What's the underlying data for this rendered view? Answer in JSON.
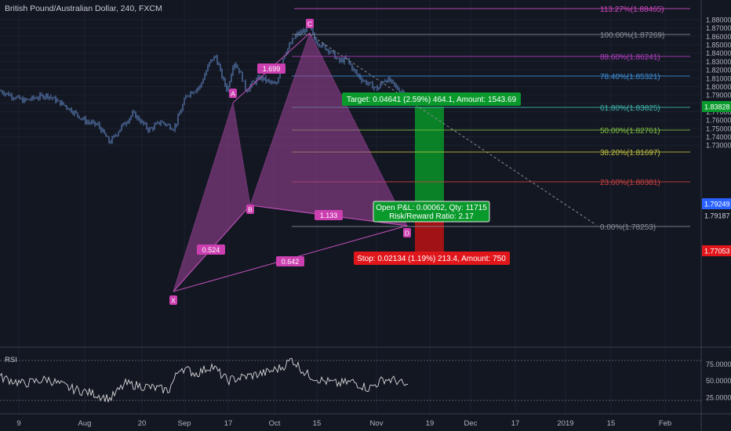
{
  "header": {
    "title": "British Pound/Australian Dollar, 240, FXCM"
  },
  "colors": {
    "background": "#131722",
    "candle": "#5b7fb8",
    "pattern_fill": "#a0459a",
    "pattern_line": "#c050b8",
    "pattern_label": "#cc3fb0",
    "target_zone": "#0a8d28",
    "stop_zone": "#b01212",
    "target_label": "#0a9a2c",
    "stop_label": "#e0161b",
    "rsi_line": "#d8d8d8"
  },
  "price_axis": {
    "ticks": [
      "1.88000",
      "1.87000",
      "1.86000",
      "1.85000",
      "1.84000",
      "1.83000",
      "1.82000",
      "1.81000",
      "1.80000",
      "1.79000",
      "1.78000",
      "1.77000",
      "1.76000",
      "1.75000",
      "1.74000",
      "1.73000"
    ]
  },
  "price_badges": [
    {
      "text": "1.83828",
      "color": "#0a9a2c",
      "text_color": "#ffffff"
    },
    {
      "text": "1.79249",
      "color": "#2962ff",
      "text_color": "#ffffff"
    },
    {
      "text": "1.79187",
      "color": "#131722",
      "text_color": "#d0d3db"
    },
    {
      "text": "1.77053",
      "color": "#e0161b",
      "text_color": "#ffffff"
    }
  ],
  "time_axis": {
    "ticks": [
      "9",
      "Aug",
      "20",
      "Sep",
      "17",
      "Oct",
      "15",
      "Nov",
      "19",
      "Dec",
      "17",
      "2019",
      "15",
      "Feb"
    ]
  },
  "fib_levels": [
    {
      "label": "113.27%(1.88465)",
      "color": "#d048c0"
    },
    {
      "label": "100.00%(1.87269)",
      "color": "#8a8f99"
    },
    {
      "label": "88.60%(1.86241)",
      "color": "#b040c0"
    },
    {
      "label": "78.40%(1.85321)",
      "color": "#3d8fd8"
    },
    {
      "label": "61.80%(1.83825)",
      "color": "#3fb8b0"
    },
    {
      "label": "50.00%(1.82761)",
      "color": "#7fc040"
    },
    {
      "label": "38.20%(1.81697)",
      "color": "#c0c040"
    },
    {
      "label": "23.60%(1.80381)",
      "color": "#d04040"
    },
    {
      "label": "0.00%(1.78253)",
      "color": "#8a8f99"
    }
  ],
  "pattern": {
    "points": {
      "X": "X",
      "A": "A",
      "B": "B",
      "C": "C",
      "D": "D"
    },
    "ratios": {
      "xb": "0.524",
      "ac": "1.699",
      "bd": "1.133",
      "xd": "0.642"
    }
  },
  "position": {
    "target_text": "Target: 0.04641 (2.59%) 464.1, Amount: 1543.69",
    "stop_text": "Stop: 0.02134 (1.19%) 213.4, Amount: 750",
    "open_pl_text": "Open P&L: 0.00062, Qty: 11715",
    "risk_reward_text": "Risk/Reward Ratio: 2.17"
  },
  "rsi": {
    "label": "RSI",
    "ticks": [
      "75.0000",
      "50.0000",
      "25.0000"
    ]
  }
}
